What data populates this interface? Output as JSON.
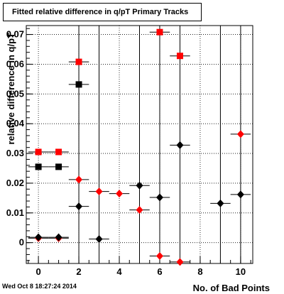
{
  "chart_data": {
    "type": "scatter",
    "title": "Fitted relative difference in q/pT Primary Tracks",
    "xlabel": "No. of Bad Points",
    "ylabel": "relative difference in q/pT",
    "footer": "Wed Oct  8 18:27:24 2014",
    "xlim": [
      -0.6,
      10.6
    ],
    "ylim": [
      -0.007,
      0.073
    ],
    "x_ticks": [
      0,
      2,
      4,
      6,
      8,
      10
    ],
    "y_ticks": [
      0,
      0.01,
      0.02,
      0.03,
      0.04,
      0.05,
      0.06,
      0.07
    ],
    "y_tick_labels": [
      "0",
      "0.01",
      "0.02",
      "0.03",
      "0.04",
      "0.05",
      "0.06",
      "0.07"
    ],
    "grid": true,
    "series": [
      {
        "marker": "square",
        "color": "#ff0000",
        "x": [
          0,
          1,
          2,
          6,
          7
        ],
        "y": [
          0.0305,
          0.0305,
          0.0608,
          0.0708,
          0.0628
        ],
        "xerr": [
          0.5,
          0.5,
          0.5,
          0.5,
          0.5
        ]
      },
      {
        "marker": "square",
        "color": "#000000",
        "x": [
          0,
          1,
          2
        ],
        "y": [
          0.0255,
          0.0255,
          0.0532
        ],
        "xerr": [
          0.5,
          0.5,
          0.5
        ]
      },
      {
        "marker": "diamond",
        "color": "#ff0000",
        "x": [
          0,
          1,
          2,
          3,
          4,
          5,
          6,
          7,
          10
        ],
        "y": [
          0.0015,
          0.0015,
          0.0212,
          0.0172,
          0.0165,
          0.011,
          -0.0045,
          -0.0065,
          0.0365
        ],
        "xerr": [
          0.5,
          0.5,
          0.5,
          0.5,
          0.5,
          0.5,
          0.5,
          0.5,
          0.5
        ]
      },
      {
        "marker": "diamond",
        "color": "#000000",
        "x": [
          0,
          1,
          2,
          3,
          5,
          6,
          7,
          9,
          10
        ],
        "y": [
          0.0018,
          0.0018,
          0.0122,
          0.0012,
          0.0192,
          0.0152,
          0.0328,
          0.0132,
          0.0162
        ],
        "xerr": [
          0.5,
          0.5,
          0.5,
          0.5,
          0.5,
          0.5,
          0.5,
          0.5,
          0.5
        ]
      }
    ],
    "vertical_error_bars_x": [
      2,
      3,
      5,
      6,
      7,
      9,
      10
    ]
  }
}
